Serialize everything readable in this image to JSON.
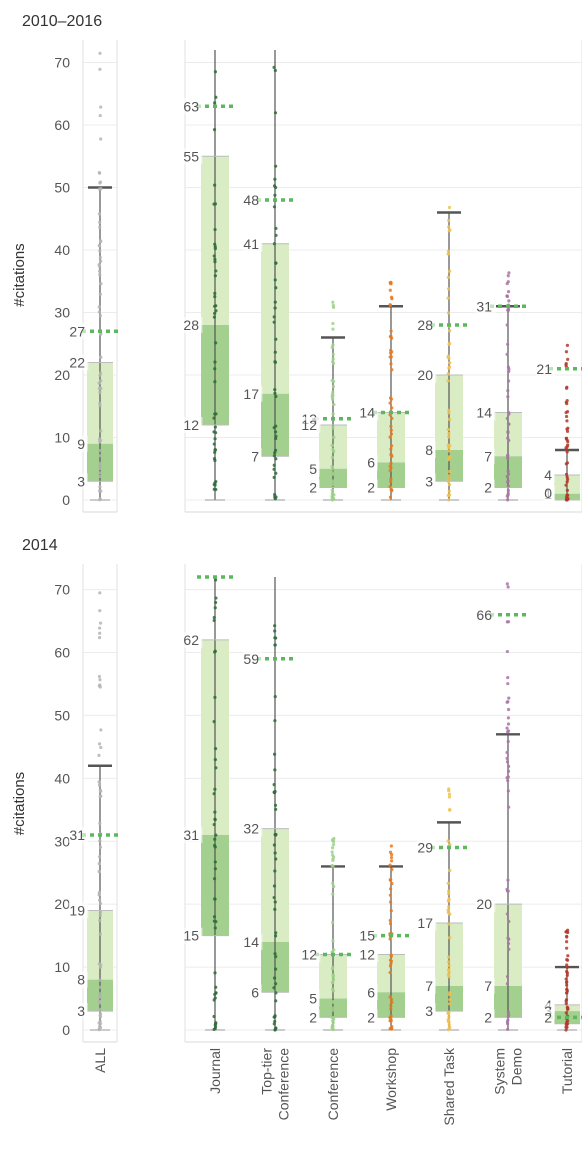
{
  "chart_data": {
    "type": "box",
    "categories": [
      "ALL",
      "Journal",
      "Top-tier Conference",
      "Conference",
      "Workshop",
      "Shared Task",
      "System Demo",
      "Tutorial"
    ],
    "category_label_lines": [
      [
        "ALL"
      ],
      [
        "Journal"
      ],
      [
        "Top-tier",
        "Conference"
      ],
      [
        "Conference"
      ],
      [
        "Workshop"
      ],
      [
        "Shared Task"
      ],
      [
        "System",
        "Demo"
      ],
      [
        "Tutorial"
      ]
    ],
    "ylabel": "#citations",
    "ylim": [
      0,
      72
    ],
    "yticks": [
      0,
      10,
      20,
      30,
      40,
      50,
      60,
      70
    ],
    "grid": true,
    "colors": {
      "box_upper": "#d9ecc4",
      "box_lower": "#a3cf8f",
      "mean_line": "#5cb85c",
      "whisker": "#555555",
      "dots": [
        "#b5b5b5",
        "#2f6b3a",
        "#2f6b3a",
        "#9fd18a",
        "#e8781f",
        "#f2c14e",
        "#a874a5",
        "#b2392a"
      ]
    },
    "panels": [
      {
        "title": "2010–2016",
        "series": [
          {
            "category": "ALL",
            "q1": 3,
            "median": 9,
            "q3": 22,
            "mean": 27,
            "whisker_low": 0,
            "whisker_high": 50,
            "labels": [
              "27",
              "22",
              "9",
              "3"
            ]
          },
          {
            "category": "Journal",
            "q1": 12,
            "median": 28,
            "q3": 55,
            "mean": 63,
            "whisker_low": 0,
            "whisker_high": 72,
            "labels": [
              "63",
              "55",
              "28",
              "12"
            ]
          },
          {
            "category": "Top-tier Conference",
            "q1": 7,
            "median": 17,
            "q3": 41,
            "mean": 48,
            "whisker_low": 0,
            "whisker_high": 72,
            "labels": [
              "48",
              "41",
              "17",
              "7"
            ]
          },
          {
            "category": "Conference",
            "q1": 2,
            "median": 5,
            "q3": 12,
            "mean": 13,
            "whisker_low": 0,
            "whisker_high": 26,
            "labels": [
              "13",
              "12",
              "5",
              "2"
            ]
          },
          {
            "category": "Workshop",
            "q1": 2,
            "median": 6,
            "q3": 14,
            "mean": 14,
            "whisker_low": 0,
            "whisker_high": 31,
            "labels": [
              "14",
              "6",
              "2"
            ]
          },
          {
            "category": "Shared Task",
            "q1": 3,
            "median": 8,
            "q3": 20,
            "mean": 28,
            "whisker_low": 0,
            "whisker_high": 46,
            "labels": [
              "28",
              "20",
              "8",
              "3"
            ]
          },
          {
            "category": "System Demo",
            "q1": 2,
            "median": 7,
            "q3": 14,
            "mean": 31,
            "whisker_low": 0,
            "whisker_high": 31,
            "labels": [
              "31",
              "14",
              "7",
              "2"
            ]
          },
          {
            "category": "Tutorial",
            "q1": 0,
            "median": 1,
            "q3": 4,
            "mean": 21,
            "whisker_low": 0,
            "whisker_high": 8,
            "labels": [
              "21",
              "4",
              "1",
              "0"
            ]
          }
        ]
      },
      {
        "title": "2014",
        "series": [
          {
            "category": "ALL",
            "q1": 3,
            "median": 8,
            "q3": 19,
            "mean": 31,
            "whisker_low": 0,
            "whisker_high": 42,
            "labels": [
              "31",
              "19",
              "8",
              "3"
            ]
          },
          {
            "category": "Journal",
            "q1": 15,
            "median": 31,
            "q3": 62,
            "mean": 72,
            "whisker_low": 0,
            "whisker_high": 72,
            "labels": [
              "62",
              "31",
              "15"
            ]
          },
          {
            "category": "Top-tier Conference",
            "q1": 6,
            "median": 14,
            "q3": 32,
            "mean": 59,
            "whisker_low": 0,
            "whisker_high": 72,
            "labels": [
              "59",
              "32",
              "14",
              "6"
            ]
          },
          {
            "category": "Conference",
            "q1": 2,
            "median": 5,
            "q3": 12,
            "mean": 12,
            "whisker_low": 0,
            "whisker_high": 26,
            "labels": [
              "12",
              "5",
              "2"
            ]
          },
          {
            "category": "Workshop",
            "q1": 2,
            "median": 6,
            "q3": 12,
            "mean": 15,
            "whisker_low": 0,
            "whisker_high": 26,
            "labels": [
              "15",
              "12",
              "6",
              "2"
            ]
          },
          {
            "category": "Shared Task",
            "q1": 3,
            "median": 7,
            "q3": 17,
            "mean": 29,
            "whisker_low": 0,
            "whisker_high": 33,
            "labels": [
              "29",
              "17",
              "7",
              "3"
            ]
          },
          {
            "category": "System Demo",
            "q1": 2,
            "median": 7,
            "q3": 20,
            "mean": 66,
            "whisker_low": 0,
            "whisker_high": 47,
            "labels": [
              "66",
              "20",
              "7",
              "2"
            ]
          },
          {
            "category": "Tutorial",
            "q1": 1,
            "median": 3,
            "q3": 4,
            "mean": 2,
            "whisker_low": 0,
            "whisker_high": 10,
            "labels": [
              "4",
              "3",
              "2"
            ]
          }
        ]
      }
    ]
  }
}
